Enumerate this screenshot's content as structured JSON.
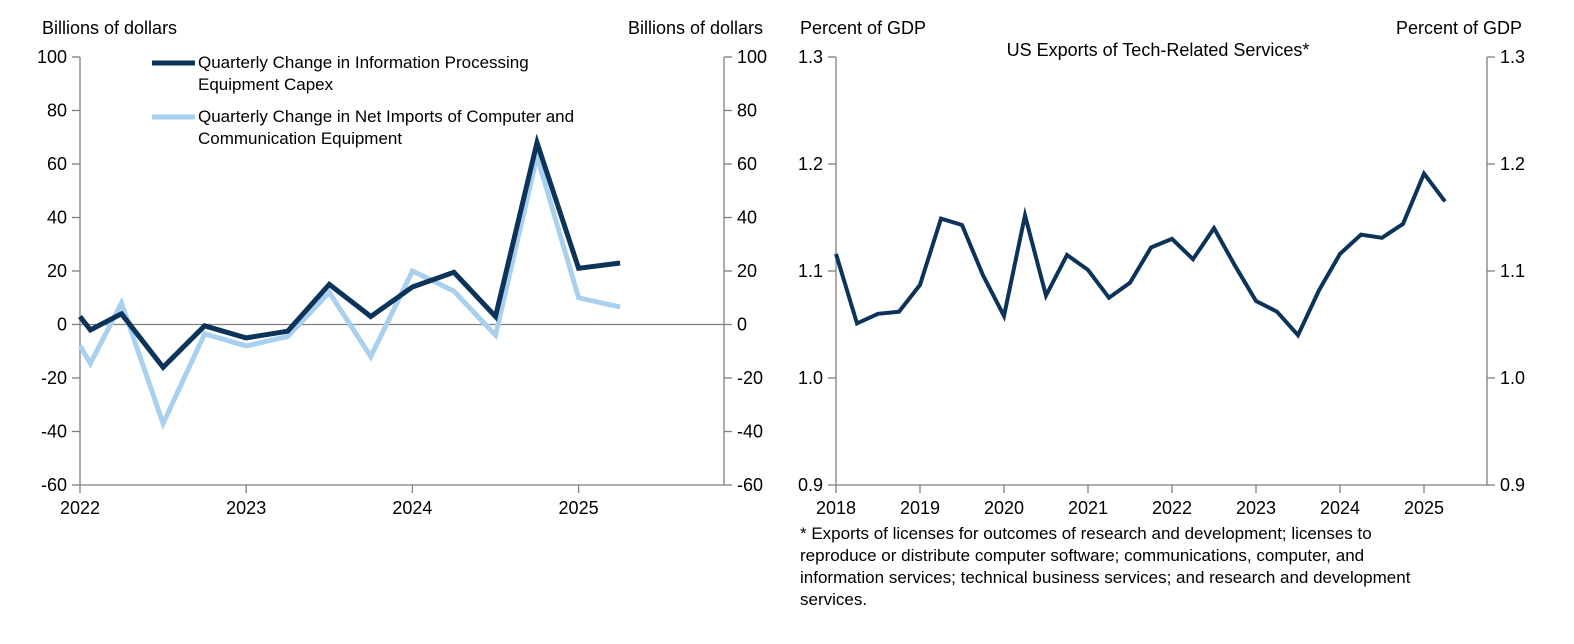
{
  "colors": {
    "dark": "#0c3359",
    "light": "#a9d1ef",
    "axis": "#808080"
  },
  "chart_data": [
    {
      "type": "line",
      "left_axis_label": "Billions of dollars",
      "right_axis_label": "Billions of dollars",
      "ylim": [
        -60,
        100
      ],
      "yticks": [
        -60,
        -40,
        -20,
        0,
        20,
        40,
        60,
        80,
        100
      ],
      "yticks_right": [
        -60,
        -40,
        -20,
        0,
        20,
        40,
        60,
        80,
        100
      ],
      "xlim": [
        2022,
        2025.875
      ],
      "xticks": [
        2022,
        2023,
        2024,
        2025
      ],
      "xtick_labels": [
        "2022",
        "2023",
        "2024",
        "2025"
      ],
      "series": [
        {
          "name": "Quarterly Change in Information Processing Equipment Capex",
          "legend_lines": [
            "Quarterly Change in Information Processing",
            "Equipment Capex"
          ],
          "color_key": "dark",
          "x": [
            2022.0,
            2022.0625,
            2022.25,
            2022.5,
            2022.75,
            2023.0,
            2023.25,
            2023.5,
            2023.75,
            2024.0,
            2024.25,
            2024.5,
            2024.75,
            2025.0,
            2025.25
          ],
          "values": [
            3,
            -2,
            4,
            -16,
            -0.5,
            -5,
            -2.5,
            15,
            3,
            14,
            19.5,
            3,
            68,
            21,
            23
          ]
        },
        {
          "name": "Quarterly Change in Net Imports of Computer and Communication Equipment",
          "legend_lines": [
            "Quarterly Change in Net Imports of Computer and",
            "Communication Equipment"
          ],
          "color_key": "light",
          "x": [
            2022.0,
            2022.0625,
            2022.25,
            2022.5,
            2022.75,
            2023.0,
            2023.25,
            2023.5,
            2023.75,
            2024.0,
            2024.25,
            2024.5,
            2024.75,
            2025.0,
            2025.25
          ],
          "values": [
            -8,
            -14.5,
            8,
            -37,
            -3.5,
            -8,
            -4.5,
            12,
            -12,
            20,
            12.5,
            -4,
            63,
            10,
            6.5
          ]
        }
      ]
    },
    {
      "type": "line",
      "title": "US Exports of Tech-Related Services*",
      "left_axis_label": "Percent of GDP",
      "right_axis_label": "Percent of GDP",
      "ylim": [
        0.9,
        1.3
      ],
      "yticks": [
        0.9,
        1.0,
        1.1,
        1.2,
        1.3
      ],
      "ytick_labels": [
        "0.9",
        "1.0",
        "1.1",
        "1.2",
        "1.3"
      ],
      "xlim": [
        2018,
        2025.75
      ],
      "xticks": [
        2018,
        2019,
        2020,
        2021,
        2022,
        2023,
        2024,
        2025
      ],
      "xtick_labels": [
        "2018",
        "2019",
        "2020",
        "2021",
        "2022",
        "2023",
        "2024",
        "2025"
      ],
      "series": [
        {
          "name": "US Exports of Tech-Related Services",
          "color_key": "dark",
          "x": [
            2018.0,
            2018.25,
            2018.5,
            2018.75,
            2019.0,
            2019.25,
            2019.5,
            2019.75,
            2020.0,
            2020.25,
            2020.5,
            2020.75,
            2021.0,
            2021.25,
            2021.5,
            2021.75,
            2022.0,
            2022.25,
            2022.5,
            2022.75,
            2023.0,
            2023.25,
            2023.5,
            2023.75,
            2024.0,
            2024.25,
            2024.5,
            2024.75,
            2025.0,
            2025.25
          ],
          "values": [
            1.116,
            1.051,
            1.06,
            1.062,
            1.087,
            1.149,
            1.143,
            1.096,
            1.058,
            1.152,
            1.077,
            1.115,
            1.101,
            1.075,
            1.089,
            1.122,
            1.13,
            1.111,
            1.14,
            1.105,
            1.072,
            1.062,
            1.04,
            1.082,
            1.116,
            1.134,
            1.131,
            1.144,
            1.191,
            1.165
          ]
        }
      ],
      "footnote_lines": [
        "* Exports of licenses for outcomes of research and development; licenses to",
        "reproduce or distribute computer software; communications, computer, and",
        "information services; technical business services; and research and development",
        "services."
      ]
    }
  ]
}
